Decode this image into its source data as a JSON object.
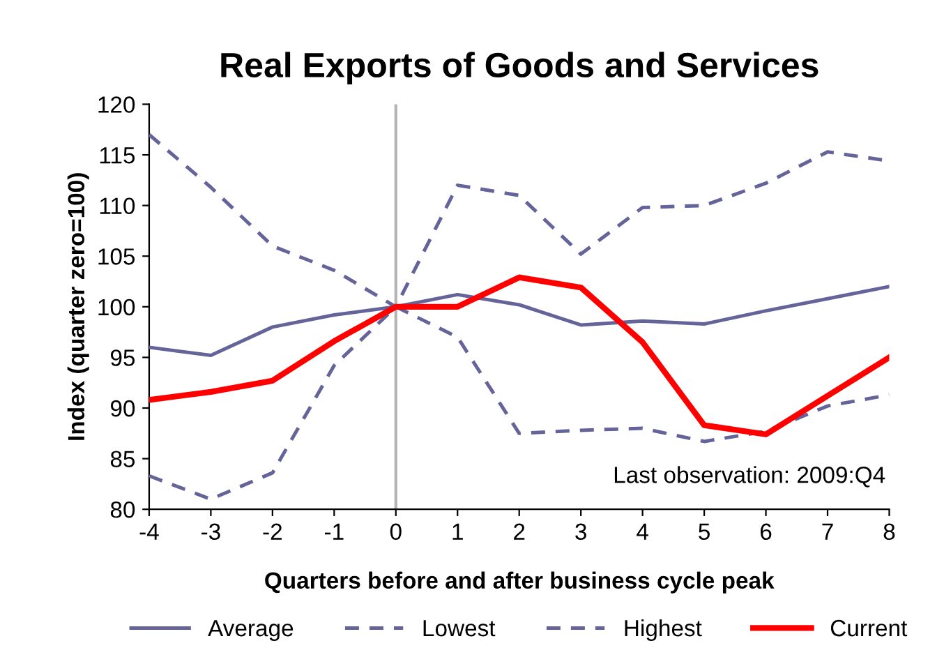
{
  "chart_data": {
    "type": "line",
    "title": "Real Exports of Goods and Services",
    "xlabel": "Quarters before and after business cycle peak",
    "ylabel": "Index (quarter zero=100)",
    "x": [
      -4,
      -3,
      -2,
      -1,
      0,
      1,
      2,
      3,
      4,
      5,
      6,
      7,
      8
    ],
    "series": [
      {
        "name": "Average",
        "color": "#64649a",
        "line_style": "solid",
        "values": [
          96,
          95.2,
          98,
          99.2,
          100,
          101.2,
          100.2,
          98.2,
          98.6,
          98.3,
          99.6,
          100.8,
          102
        ]
      },
      {
        "name": "Lowest",
        "color": "#64649a",
        "line_style": "dashed",
        "values": [
          83.3,
          81,
          83.6,
          94.2,
          100,
          97,
          87.5,
          87.8,
          88,
          86.7,
          87.7,
          90.2,
          91.3
        ]
      },
      {
        "name": "Highest",
        "color": "#64649a",
        "line_style": "dashed",
        "values": [
          117,
          111.8,
          106,
          103.6,
          100,
          112,
          111,
          105.2,
          109.8,
          110,
          112.2,
          115.3,
          114.4
        ]
      },
      {
        "name": "Current",
        "color": "#ff0000",
        "line_style": "solid",
        "values": [
          90.8,
          91.6,
          92.7,
          96.6,
          100,
          100,
          102.9,
          101.9,
          96.5,
          88.3,
          87.4,
          91.2,
          95
        ]
      }
    ],
    "xlim": [
      -4,
      8
    ],
    "xticks": [
      -4,
      -3,
      -2,
      -1,
      0,
      1,
      2,
      3,
      4,
      5,
      6,
      7,
      8
    ],
    "ylim": [
      80,
      120
    ],
    "yticks": [
      80,
      85,
      90,
      95,
      100,
      105,
      110,
      115,
      120
    ],
    "ref_lines": [
      {
        "axis": "x",
        "value": 0,
        "color": "#b4b4b4"
      }
    ],
    "annotations": [
      "Last observation: 2009:Q4"
    ],
    "grid": false,
    "legend": "bottom",
    "marker": "none"
  }
}
